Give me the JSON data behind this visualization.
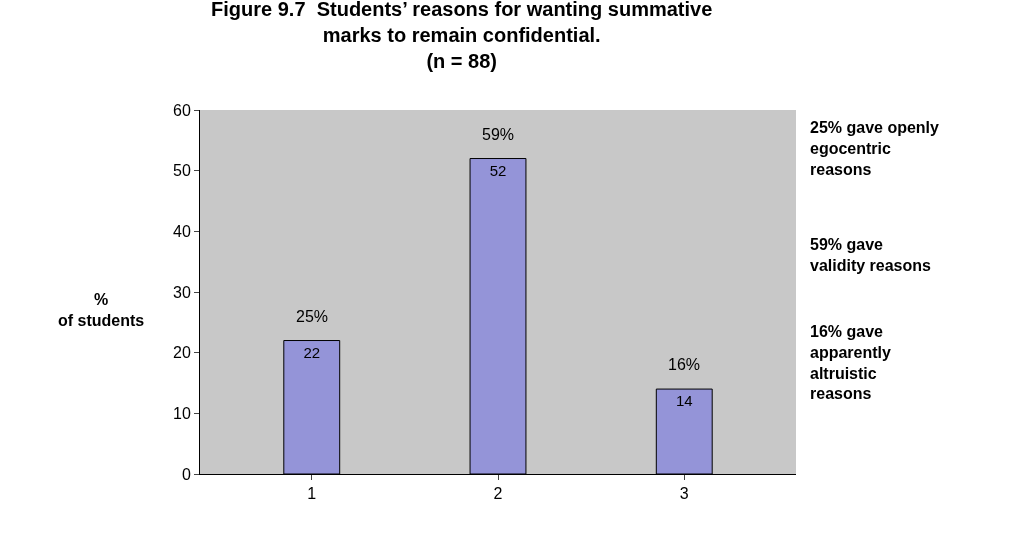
{
  "chart_data": {
    "type": "bar",
    "title": "Figure 9.7  Students’ reasons for wanting summative\nmarks to remain confidential.",
    "subtitle": "(n = 88)",
    "ylabel": "%\nof students",
    "categories": [
      "1",
      "2",
      "3"
    ],
    "values": [
      22,
      52,
      14
    ],
    "color": "#9494d8",
    "ylim": [
      0,
      60
    ],
    "yticks": [
      0,
      10,
      20,
      30,
      40,
      50,
      60
    ],
    "grid": false,
    "data_labels": true,
    "annotations": [
      {
        "text": "25%",
        "x": "1",
        "y": 22
      },
      {
        "text": "59%",
        "x": "2",
        "y": 52
      },
      {
        "text": "16%",
        "x": "3",
        "y": 14
      },
      "25% gave openly\negocentric\nreasons",
      "59% gave\nvalidity reasons",
      "16% gave\napparently\naltruistic\nreasons"
    ]
  }
}
